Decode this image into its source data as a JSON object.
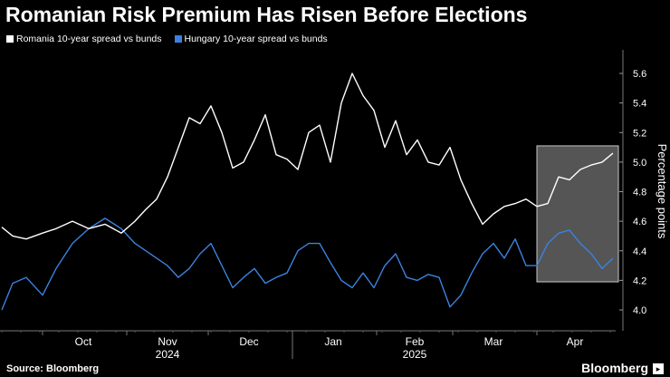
{
  "title": "Romanian Risk Premium Has Risen Before Elections",
  "source": "Source: Bloomberg",
  "brand": "Bloomberg",
  "colors": {
    "background": "#000000",
    "romania": "#ffffff",
    "hungary": "#3b82e0",
    "highlight": "#9a9a9a"
  },
  "chart_data": {
    "type": "line",
    "title": "Romanian Risk Premium Has Risen Before Elections",
    "ylabel": "Percentage points",
    "ylim": [
      3.9,
      5.75
    ],
    "y_ticks": [
      4.0,
      4.2,
      4.4,
      4.6,
      4.8,
      5.0,
      5.2,
      5.4,
      5.6
    ],
    "x_range": [
      "2024-09-16",
      "2025-04-30"
    ],
    "x_month_labels": [
      {
        "date": "2024-10-16",
        "label": "Oct"
      },
      {
        "date": "2024-11-16",
        "label": "Nov"
      },
      {
        "date": "2024-12-16",
        "label": "Dec"
      },
      {
        "date": "2025-01-16",
        "label": "Jan"
      },
      {
        "date": "2025-02-15",
        "label": "Feb"
      },
      {
        "date": "2025-03-16",
        "label": "Mar"
      },
      {
        "date": "2025-04-15",
        "label": "Apr"
      }
    ],
    "x_year_labels": [
      {
        "date": "2024-11-16",
        "label": "2024"
      },
      {
        "date": "2025-02-15",
        "label": "2025"
      }
    ],
    "highlight_region": {
      "x_start": "2025-04-01",
      "x_end": "2025-04-30",
      "y_start": 4.19,
      "y_end": 5.11
    },
    "grid": false,
    "legend_position": "top-left",
    "series": [
      {
        "name": "Romania 10-year spread vs bunds",
        "color": "#ffffff",
        "x": [
          "2024-09-16",
          "2024-09-20",
          "2024-09-25",
          "2024-10-01",
          "2024-10-06",
          "2024-10-12",
          "2024-10-18",
          "2024-10-24",
          "2024-10-30",
          "2024-11-04",
          "2024-11-08",
          "2024-11-12",
          "2024-11-16",
          "2024-11-20",
          "2024-11-24",
          "2024-11-28",
          "2024-12-02",
          "2024-12-06",
          "2024-12-10",
          "2024-12-14",
          "2024-12-18",
          "2024-12-22",
          "2024-12-26",
          "2024-12-30",
          "2025-01-03",
          "2025-01-07",
          "2025-01-11",
          "2025-01-15",
          "2025-01-19",
          "2025-01-23",
          "2025-01-27",
          "2025-01-31",
          "2025-02-04",
          "2025-02-08",
          "2025-02-12",
          "2025-02-16",
          "2025-02-20",
          "2025-02-24",
          "2025-02-28",
          "2025-03-04",
          "2025-03-08",
          "2025-03-12",
          "2025-03-16",
          "2025-03-20",
          "2025-03-24",
          "2025-03-28",
          "2025-04-01",
          "2025-04-05",
          "2025-04-09",
          "2025-04-13",
          "2025-04-17",
          "2025-04-21",
          "2025-04-25",
          "2025-04-29"
        ],
        "y": [
          4.56,
          4.5,
          4.48,
          4.52,
          4.55,
          4.6,
          4.55,
          4.58,
          4.52,
          4.6,
          4.68,
          4.75,
          4.9,
          5.1,
          5.3,
          5.26,
          5.38,
          5.2,
          4.96,
          5.0,
          5.15,
          5.32,
          5.05,
          5.02,
          4.95,
          5.2,
          5.25,
          5.0,
          5.4,
          5.6,
          5.45,
          5.35,
          5.1,
          5.28,
          5.05,
          5.15,
          5.0,
          4.98,
          5.1,
          4.88,
          4.72,
          4.58,
          4.65,
          4.7,
          4.72,
          4.75,
          4.7,
          4.72,
          4.9,
          4.88,
          4.95,
          4.98,
          5.0,
          5.06
        ]
      },
      {
        "name": "Hungary 10-year spread vs bunds",
        "color": "#3b82e0",
        "x": [
          "2024-09-16",
          "2024-09-20",
          "2024-09-25",
          "2024-10-01",
          "2024-10-06",
          "2024-10-12",
          "2024-10-18",
          "2024-10-24",
          "2024-10-30",
          "2024-11-04",
          "2024-11-08",
          "2024-11-12",
          "2024-11-16",
          "2024-11-20",
          "2024-11-24",
          "2024-11-28",
          "2024-12-02",
          "2024-12-06",
          "2024-12-10",
          "2024-12-14",
          "2024-12-18",
          "2024-12-22",
          "2024-12-26",
          "2024-12-30",
          "2025-01-03",
          "2025-01-07",
          "2025-01-11",
          "2025-01-15",
          "2025-01-19",
          "2025-01-23",
          "2025-01-27",
          "2025-01-31",
          "2025-02-04",
          "2025-02-08",
          "2025-02-12",
          "2025-02-16",
          "2025-02-20",
          "2025-02-24",
          "2025-02-28",
          "2025-03-04",
          "2025-03-08",
          "2025-03-12",
          "2025-03-16",
          "2025-03-20",
          "2025-03-24",
          "2025-03-28",
          "2025-04-01",
          "2025-04-05",
          "2025-04-09",
          "2025-04-13",
          "2025-04-17",
          "2025-04-21",
          "2025-04-25",
          "2025-04-29"
        ],
        "y": [
          4.0,
          4.18,
          4.22,
          4.1,
          4.28,
          4.45,
          4.55,
          4.62,
          4.55,
          4.45,
          4.4,
          4.35,
          4.3,
          4.22,
          4.28,
          4.38,
          4.45,
          4.3,
          4.15,
          4.22,
          4.28,
          4.18,
          4.22,
          4.25,
          4.4,
          4.45,
          4.45,
          4.32,
          4.2,
          4.15,
          4.25,
          4.15,
          4.3,
          4.38,
          4.22,
          4.2,
          4.24,
          4.22,
          4.02,
          4.1,
          4.25,
          4.38,
          4.45,
          4.35,
          4.48,
          4.3,
          4.3,
          4.45,
          4.52,
          4.54,
          4.45,
          4.38,
          4.28,
          4.35
        ]
      }
    ]
  }
}
